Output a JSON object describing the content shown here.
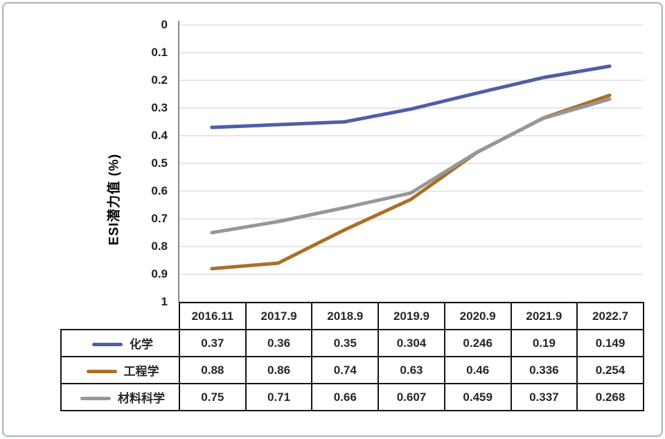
{
  "y_axis": {
    "title": "ESI潜力值 (%)"
  },
  "chart_data": {
    "type": "line",
    "title": "",
    "xlabel": "",
    "ylabel": "ESI潜力值 (%)",
    "categories": [
      "2016.11",
      "2017.9",
      "2018.9",
      "2019.9",
      "2020.9",
      "2021.9",
      "2022.7"
    ],
    "series": [
      {
        "name": "化学",
        "color": "#4d5fa6",
        "values": [
          0.37,
          0.36,
          0.35,
          0.304,
          0.246,
          0.19,
          0.149
        ]
      },
      {
        "name": "工程学",
        "color": "#ac6e27",
        "values": [
          0.88,
          0.86,
          0.74,
          0.63,
          0.46,
          0.336,
          0.254
        ]
      },
      {
        "name": "材料科学",
        "color": "#979797",
        "values": [
          0.75,
          0.71,
          0.66,
          0.607,
          0.459,
          0.337,
          0.268
        ]
      }
    ],
    "ylim": [
      0,
      1
    ],
    "y_inverted": true,
    "yticks": [
      0,
      0.1,
      0.2,
      0.3,
      0.4,
      0.5,
      0.6,
      0.7,
      0.8,
      0.9,
      1
    ],
    "grid": true,
    "legend_position": "table-left",
    "colors": {
      "gridline": "#d8d8d8",
      "axis_line": "#5f6f80",
      "table_border": "#141414",
      "frame_border": "#aab7c9",
      "tick_text": "#1f1f1f"
    }
  }
}
